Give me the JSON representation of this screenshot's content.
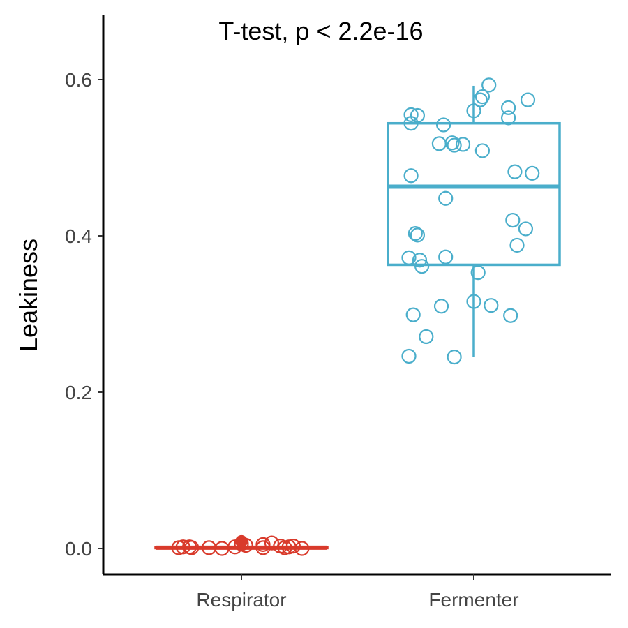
{
  "chart_data": {
    "type": "boxplot",
    "title": "",
    "annotation": "T-test, p < 2.2e-16",
    "xlabel": "",
    "ylabel": "Leakiness",
    "ylim": [
      -0.033,
      0.68
    ],
    "yticks": [
      0.0,
      0.2,
      0.4,
      0.6
    ],
    "ytick_labels": [
      "0.0",
      "0.2",
      "0.4",
      "0.6"
    ],
    "categories": [
      "Respirator",
      "Fermenter"
    ],
    "grid": false,
    "legend": "none",
    "groups": [
      {
        "category": "Respirator",
        "color": "#d93a2b",
        "box": {
          "min": 0.0,
          "q1": 0.0005,
          "median": 0.001,
          "q3": 0.002,
          "max": 0.009
        },
        "outliers": [
          0.009
        ],
        "points": [
          {
            "jitter": -0.29,
            "y": 0.001
          },
          {
            "jitter": -0.27,
            "y": 0.002
          },
          {
            "jitter": -0.24,
            "y": 0.002
          },
          {
            "jitter": -0.23,
            "y": 0.001
          },
          {
            "jitter": -0.15,
            "y": 0.001
          },
          {
            "jitter": -0.09,
            "y": 0.0
          },
          {
            "jitter": -0.03,
            "y": 0.002
          },
          {
            "jitter": 0.0,
            "y": 0.006
          },
          {
            "jitter": 0.02,
            "y": 0.004
          },
          {
            "jitter": 0.1,
            "y": 0.001
          },
          {
            "jitter": 0.1,
            "y": 0.005
          },
          {
            "jitter": 0.14,
            "y": 0.007
          },
          {
            "jitter": 0.18,
            "y": 0.003
          },
          {
            "jitter": 0.2,
            "y": 0.001
          },
          {
            "jitter": 0.22,
            "y": 0.002
          },
          {
            "jitter": 0.24,
            "y": 0.003
          },
          {
            "jitter": 0.28,
            "y": 0.0
          }
        ]
      },
      {
        "category": "Fermenter",
        "color": "#4aaecb",
        "box": {
          "min": 0.245,
          "q1": 0.363,
          "median": 0.463,
          "q3": 0.544,
          "max": 0.592
        },
        "outliers": [],
        "points": [
          {
            "jitter": 0.07,
            "y": 0.593
          },
          {
            "jitter": 0.25,
            "y": 0.574
          },
          {
            "jitter": 0.04,
            "y": 0.578
          },
          {
            "jitter": 0.03,
            "y": 0.574
          },
          {
            "jitter": 0.16,
            "y": 0.564
          },
          {
            "jitter": 0.0,
            "y": 0.56
          },
          {
            "jitter": -0.29,
            "y": 0.555
          },
          {
            "jitter": -0.26,
            "y": 0.554
          },
          {
            "jitter": 0.16,
            "y": 0.551
          },
          {
            "jitter": -0.29,
            "y": 0.544
          },
          {
            "jitter": -0.14,
            "y": 0.542
          },
          {
            "jitter": -0.16,
            "y": 0.518
          },
          {
            "jitter": -0.1,
            "y": 0.519
          },
          {
            "jitter": -0.09,
            "y": 0.516
          },
          {
            "jitter": -0.05,
            "y": 0.517
          },
          {
            "jitter": 0.04,
            "y": 0.509
          },
          {
            "jitter": 0.19,
            "y": 0.482
          },
          {
            "jitter": 0.27,
            "y": 0.48
          },
          {
            "jitter": -0.29,
            "y": 0.477
          },
          {
            "jitter": -0.13,
            "y": 0.448
          },
          {
            "jitter": 0.18,
            "y": 0.42
          },
          {
            "jitter": 0.24,
            "y": 0.409
          },
          {
            "jitter": -0.27,
            "y": 0.403
          },
          {
            "jitter": -0.26,
            "y": 0.401
          },
          {
            "jitter": 0.2,
            "y": 0.388
          },
          {
            "jitter": -0.3,
            "y": 0.372
          },
          {
            "jitter": -0.13,
            "y": 0.373
          },
          {
            "jitter": -0.25,
            "y": 0.369
          },
          {
            "jitter": -0.24,
            "y": 0.361
          },
          {
            "jitter": 0.02,
            "y": 0.353
          },
          {
            "jitter": 0.0,
            "y": 0.316
          },
          {
            "jitter": -0.15,
            "y": 0.31
          },
          {
            "jitter": 0.08,
            "y": 0.311
          },
          {
            "jitter": 0.17,
            "y": 0.298
          },
          {
            "jitter": -0.28,
            "y": 0.299
          },
          {
            "jitter": -0.22,
            "y": 0.271
          },
          {
            "jitter": -0.3,
            "y": 0.246
          },
          {
            "jitter": -0.09,
            "y": 0.245
          }
        ]
      }
    ]
  }
}
